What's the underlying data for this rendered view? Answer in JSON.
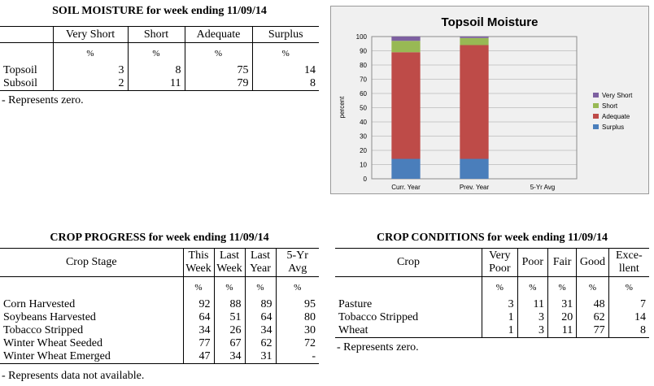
{
  "soil": {
    "title": "SOIL MOISTURE for week ending 11/09/14",
    "headers": [
      "Very Short",
      "Short",
      "Adequate",
      "Surplus"
    ],
    "unit": "%",
    "rows": [
      {
        "label": "Topsoil",
        "values": [
          "3",
          "8",
          "75",
          "14"
        ]
      },
      {
        "label": "Subsoil",
        "values": [
          "2",
          "11",
          "79",
          "8"
        ]
      }
    ],
    "note": "- Represents zero."
  },
  "chart_data": {
    "type": "bar",
    "stacked": true,
    "title": "Topsoil Moisture",
    "ylabel": "percent",
    "xlabel": "",
    "ylim": [
      0,
      100
    ],
    "yticks": [
      0,
      10,
      20,
      30,
      40,
      50,
      60,
      70,
      80,
      90,
      100
    ],
    "grid": true,
    "legend": "right",
    "categories": [
      "Curr. Year",
      "Prev. Year",
      "5-Yr Avg"
    ],
    "series": [
      {
        "name": "Surplus",
        "color": "#4a7ebb",
        "values": [
          14,
          14,
          0
        ]
      },
      {
        "name": "Adequate",
        "color": "#be4b48",
        "values": [
          75,
          80,
          0
        ]
      },
      {
        "name": "Short",
        "color": "#98b954",
        "values": [
          8,
          5,
          0
        ]
      },
      {
        "name": "Very Short",
        "color": "#7d60a0",
        "values": [
          3,
          1,
          0
        ]
      }
    ],
    "legend_order": [
      "Very Short",
      "Short",
      "Adequate",
      "Surplus"
    ]
  },
  "progress": {
    "title": "CROP PROGRESS for week ending 11/09/14",
    "stage_header": "Crop Stage",
    "headers": [
      [
        "This",
        "Week"
      ],
      [
        "Last",
        "Week"
      ],
      [
        "Last",
        "Year"
      ],
      [
        "5-Yr",
        "Avg"
      ]
    ],
    "unit": "%",
    "rows": [
      {
        "label": "Corn Harvested",
        "values": [
          "92",
          "88",
          "89",
          "95"
        ]
      },
      {
        "label": "Soybeans Harvested",
        "values": [
          "64",
          "51",
          "64",
          "80"
        ]
      },
      {
        "label": "Tobacco Stripped",
        "values": [
          "34",
          "26",
          "34",
          "30"
        ]
      },
      {
        "label": "Winter Wheat Seeded",
        "values": [
          "77",
          "67",
          "62",
          "72"
        ]
      },
      {
        "label": "Winter Wheat Emerged",
        "values": [
          "47",
          "34",
          "31",
          "-"
        ]
      }
    ],
    "note": "- Represents data not available."
  },
  "conditions": {
    "title": "CROP CONDITIONS for week ending 11/09/14",
    "crop_header": "Crop",
    "headers": [
      [
        "Very",
        "Poor"
      ],
      [
        "Poor",
        ""
      ],
      [
        "Fair",
        ""
      ],
      [
        "Good",
        ""
      ],
      [
        "Exce-",
        "llent"
      ]
    ],
    "unit": "%",
    "rows": [
      {
        "label": "Pasture",
        "values": [
          "3",
          "11",
          "31",
          "48",
          "7"
        ]
      },
      {
        "label": "Tobacco Stripped",
        "values": [
          "1",
          "3",
          "20",
          "62",
          "14"
        ]
      },
      {
        "label": "Wheat",
        "values": [
          "1",
          "3",
          "11",
          "77",
          "8"
        ]
      }
    ],
    "note": "- Represents zero."
  }
}
